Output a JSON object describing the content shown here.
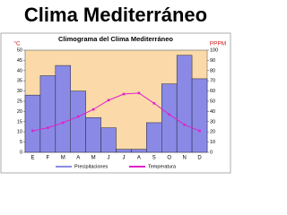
{
  "header": {
    "title": "Clima Mediterráneo"
  },
  "chart_data": {
    "type": "bar",
    "title": "Climograma del Clima Mediterráneo",
    "y_label": "°C",
    "y2_label": "PPPM",
    "categories": [
      "E",
      "F",
      "M",
      "A",
      "M",
      "J",
      "J",
      "A",
      "S",
      "O",
      "N",
      "D"
    ],
    "series": [
      {
        "name": "Precipitaciones",
        "type": "bar",
        "axis": "y2",
        "color": "#8a8ae6",
        "values": [
          56,
          75,
          85,
          60,
          34,
          24,
          3,
          3,
          29,
          67,
          95,
          72
        ]
      },
      {
        "name": "Temperatura",
        "type": "line",
        "axis": "y",
        "color": "#e020c8",
        "values": [
          10.5,
          12,
          14.5,
          17.5,
          21,
          25.5,
          28.5,
          29,
          24,
          18.5,
          13.5,
          10.5
        ]
      }
    ],
    "ylim": [
      0,
      50
    ],
    "yticks": [
      0,
      5,
      10,
      15,
      20,
      25,
      30,
      35,
      40,
      45,
      50
    ],
    "y2lim": [
      0,
      100
    ],
    "y2ticks": [
      0,
      10,
      20,
      30,
      40,
      50,
      60,
      70,
      80,
      90,
      100
    ],
    "plot_background": "#fbd9a8"
  }
}
